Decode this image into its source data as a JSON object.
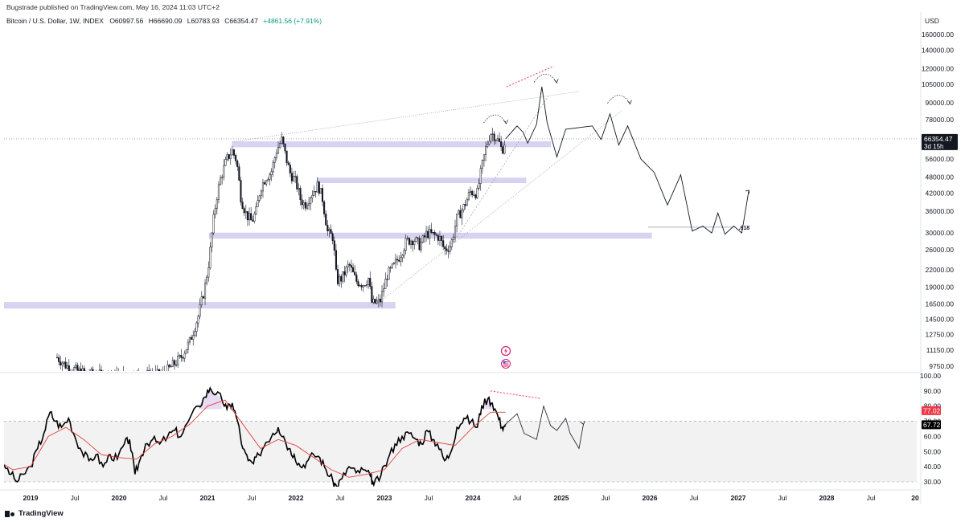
{
  "publisher": "Bugstrade published on TradingView.com, May 16, 2024 11:03 UTC+2",
  "symbol": "Bitcoin / U.S. Dollar, 1W, INDEX",
  "ohlc": {
    "open": "O60997.56",
    "high": "H66690.09",
    "low": "L60783.93",
    "close": "C66354.47",
    "change": "+4861.56 (+7.91%)"
  },
  "currency": "USD",
  "brand": "TradingView",
  "colors": {
    "candle": "#131722",
    "zone": "#d9d3f2",
    "zone_edge": "#cfc6ee",
    "rsi": "#000000",
    "rsi_ma": "#e04040",
    "rsi_band": "#f2f2f2",
    "price_badge": "#131722",
    "rsi_badge": "#f23645",
    "divergence": "#f23645"
  },
  "icons": [
    "lightning-icon",
    "us-flag-icon"
  ],
  "chart_data": [
    {
      "type": "candlestick",
      "panel": "price",
      "scale": "log",
      "ylim": [
        9000,
        170000
      ],
      "x_ticks": [
        "2019",
        "Jul",
        "2020",
        "Jul",
        "2021",
        "Jul",
        "2022",
        "Jul",
        "2023",
        "Jul",
        "2024",
        "Jul",
        "2025",
        "Jul",
        "2026",
        "Jul",
        "2027",
        "Jul",
        "2028",
        "Jul",
        "20"
      ],
      "x_tick_years": [
        2019,
        2019.5,
        2020,
        2020.5,
        2021,
        2021.5,
        2022,
        2022.5,
        2023,
        2023.5,
        2024,
        2024.5,
        2025,
        2025.5,
        2026,
        2026.5,
        2027,
        2027.5,
        2028,
        2028.5,
        2029
      ],
      "y_ticks": [
        {
          "value": 160000,
          "label": "160000.00"
        },
        {
          "value": 140000,
          "label": "140000.00"
        },
        {
          "value": 120000,
          "label": "120000.00"
        },
        {
          "value": 105000,
          "label": "105000.00"
        },
        {
          "value": 90000,
          "label": "90000.00"
        },
        {
          "value": 78000,
          "label": "78000.00"
        },
        {
          "value": 56000,
          "label": "56000.00"
        },
        {
          "value": 48000,
          "label": "48000.00"
        },
        {
          "value": 42000,
          "label": "42000.00"
        },
        {
          "value": 36000,
          "label": "36000.00"
        },
        {
          "value": 30000,
          "label": "30000.00"
        },
        {
          "value": 26000,
          "label": "26000.00"
        },
        {
          "value": 22000,
          "label": "22000.00"
        },
        {
          "value": 19000,
          "label": "19000.00"
        },
        {
          "value": 16500,
          "label": "16500.00"
        },
        {
          "value": 14500,
          "label": "14500.00"
        },
        {
          "value": 12750,
          "label": "12750.00"
        },
        {
          "value": 11150,
          "label": "11150.00"
        },
        {
          "value": 9750,
          "label": "9750.00"
        }
      ],
      "last_price": {
        "value": 66354.47,
        "label": "66354.47",
        "countdown": "3d 15h"
      },
      "close_path": [
        [
          2019.3,
          10500
        ],
        [
          2019.4,
          9800
        ],
        [
          2019.55,
          9300
        ],
        [
          2019.7,
          9100
        ],
        [
          2019.9,
          9000
        ],
        [
          2020.5,
          9100
        ],
        [
          2020.7,
          10500
        ],
        [
          2020.8,
          12000
        ],
        [
          2020.9,
          15000
        ],
        [
          2020.97,
          19000
        ],
        [
          2021.02,
          24000
        ],
        [
          2021.06,
          32000
        ],
        [
          2021.1,
          40000
        ],
        [
          2021.15,
          48000
        ],
        [
          2021.22,
          56000
        ],
        [
          2021.28,
          60000
        ],
        [
          2021.33,
          55000
        ],
        [
          2021.38,
          40000
        ],
        [
          2021.44,
          35000
        ],
        [
          2021.5,
          33000
        ],
        [
          2021.55,
          36000
        ],
        [
          2021.6,
          44000
        ],
        [
          2021.66,
          48000
        ],
        [
          2021.72,
          50000
        ],
        [
          2021.78,
          60000
        ],
        [
          2021.84,
          66000
        ],
        [
          2021.88,
          58000
        ],
        [
          2021.93,
          50000
        ],
        [
          2022.0,
          46000
        ],
        [
          2022.05,
          40000
        ],
        [
          2022.1,
          38000
        ],
        [
          2022.18,
          42000
        ],
        [
          2022.25,
          45000
        ],
        [
          2022.3,
          40000
        ],
        [
          2022.36,
          30000
        ],
        [
          2022.42,
          29000
        ],
        [
          2022.46,
          20000
        ],
        [
          2022.52,
          20500
        ],
        [
          2022.6,
          23000
        ],
        [
          2022.68,
          20000
        ],
        [
          2022.76,
          19500
        ],
        [
          2022.82,
          20500
        ],
        [
          2022.86,
          16500
        ],
        [
          2022.95,
          16800
        ],
        [
          2023.03,
          21000
        ],
        [
          2023.1,
          22500
        ],
        [
          2023.18,
          25000
        ],
        [
          2023.25,
          28000
        ],
        [
          2023.33,
          28500
        ],
        [
          2023.4,
          27000
        ],
        [
          2023.48,
          30000
        ],
        [
          2023.55,
          29500
        ],
        [
          2023.62,
          29000
        ],
        [
          2023.68,
          26000
        ],
        [
          2023.75,
          27000
        ],
        [
          2023.82,
          34000
        ],
        [
          2023.9,
          37500
        ],
        [
          2023.97,
          42500
        ],
        [
          2024.05,
          42000
        ],
        [
          2024.1,
          52000
        ],
        [
          2024.15,
          62000
        ],
        [
          2024.2,
          70000
        ],
        [
          2024.25,
          68000
        ],
        [
          2024.3,
          64000
        ],
        [
          2024.33,
          60000
        ],
        [
          2024.37,
          66354
        ]
      ],
      "zones": [
        {
          "x0": 2021.28,
          "x1": 2024.88,
          "low": 62000,
          "high": 64800
        },
        {
          "x0": 2022.24,
          "x1": 2024.6,
          "low": 45800,
          "high": 47700
        },
        {
          "x0": 2021.02,
          "x1": 2026.02,
          "low": 28700,
          "high": 30000
        },
        {
          "x0": 2018.6,
          "x1": 2023.12,
          "low": 15900,
          "high": 16700
        }
      ],
      "fib_level": {
        "label": ".618",
        "x0": 2025.98,
        "x1": 2026.95,
        "value": 31500
      },
      "trendlines": [
        {
          "kind": "resistance",
          "points": [
            [
              2021.28,
              64700
            ],
            [
              2025.2,
              99000
            ]
          ]
        },
        {
          "kind": "support",
          "points": [
            [
              2022.94,
              16700
            ],
            [
              2025.68,
              84000
            ]
          ]
        },
        {
          "kind": "channel",
          "points": [
            [
              2023.76,
              27000
            ],
            [
              2024.85,
              95000
            ]
          ]
        }
      ],
      "projection": [
        [
          2024.37,
          66354
        ],
        [
          2024.5,
          74000
        ],
        [
          2024.57,
          70000
        ],
        [
          2024.62,
          64000
        ],
        [
          2024.72,
          75000
        ],
        [
          2024.78,
          103000
        ],
        [
          2024.84,
          76000
        ],
        [
          2024.95,
          57000
        ],
        [
          2025.05,
          72000
        ],
        [
          2025.35,
          74000
        ],
        [
          2025.45,
          66000
        ],
        [
          2025.55,
          82000
        ],
        [
          2025.65,
          63000
        ],
        [
          2025.75,
          74000
        ],
        [
          2025.9,
          56000
        ],
        [
          2026.05,
          50000
        ],
        [
          2026.2,
          38000
        ],
        [
          2026.35,
          49000
        ],
        [
          2026.48,
          30500
        ],
        [
          2026.6,
          31800
        ],
        [
          2026.7,
          30000
        ],
        [
          2026.77,
          35500
        ],
        [
          2026.85,
          29700
        ],
        [
          2026.95,
          31800
        ],
        [
          2027.04,
          30000
        ],
        [
          2027.12,
          43000
        ]
      ],
      "divergence": [
        [
          2024.38,
          103000
        ],
        [
          2024.9,
          122000
        ]
      ]
    },
    {
      "type": "line",
      "panel": "rsi",
      "ylim": [
        25,
        100
      ],
      "y_ticks": [
        {
          "value": 100,
          "label": "100.00"
        },
        {
          "value": 90,
          "label": "90.00"
        },
        {
          "value": 80,
          "label": "80.00"
        },
        {
          "value": 70,
          "label": "70.00"
        },
        {
          "value": 60,
          "label": "60.00"
        },
        {
          "value": 50,
          "label": "50.00"
        },
        {
          "value": 40,
          "label": "40.00"
        },
        {
          "value": 30,
          "label": "30.00"
        }
      ],
      "band": [
        30,
        70
      ],
      "badges": [
        {
          "value": 77.02,
          "label": "77.02"
        },
        {
          "value": 67.72,
          "label": "67.72"
        }
      ],
      "series": [
        {
          "role": "rsi",
          "values": [
            [
              2018.6,
              42
            ],
            [
              2018.7,
              41
            ],
            [
              2018.78,
              35
            ],
            [
              2018.85,
              30
            ],
            [
              2018.92,
              35
            ],
            [
              2019.0,
              40
            ],
            [
              2019.08,
              52
            ],
            [
              2019.15,
              62
            ],
            [
              2019.22,
              76
            ],
            [
              2019.28,
              70
            ],
            [
              2019.35,
              66
            ],
            [
              2019.43,
              72
            ],
            [
              2019.5,
              60
            ],
            [
              2019.58,
              50
            ],
            [
              2019.66,
              44
            ],
            [
              2019.74,
              48
            ],
            [
              2019.82,
              40
            ],
            [
              2019.9,
              48
            ],
            [
              2019.98,
              45
            ],
            [
              2020.06,
              55
            ],
            [
              2020.12,
              58
            ],
            [
              2020.18,
              35
            ],
            [
              2020.24,
              45
            ],
            [
              2020.3,
              55
            ],
            [
              2020.38,
              58
            ],
            [
              2020.46,
              55
            ],
            [
              2020.55,
              60
            ],
            [
              2020.63,
              64
            ],
            [
              2020.7,
              60
            ],
            [
              2020.8,
              72
            ],
            [
              2020.9,
              80
            ],
            [
              2020.97,
              86
            ],
            [
              2021.03,
              92
            ],
            [
              2021.1,
              88
            ],
            [
              2021.16,
              85
            ],
            [
              2021.22,
              78
            ],
            [
              2021.28,
              82
            ],
            [
              2021.34,
              70
            ],
            [
              2021.4,
              52
            ],
            [
              2021.46,
              44
            ],
            [
              2021.52,
              42
            ],
            [
              2021.58,
              48
            ],
            [
              2021.66,
              56
            ],
            [
              2021.74,
              62
            ],
            [
              2021.8,
              66
            ],
            [
              2021.86,
              60
            ],
            [
              2021.92,
              52
            ],
            [
              2021.98,
              48
            ],
            [
              2022.05,
              40
            ],
            [
              2022.12,
              43
            ],
            [
              2022.2,
              48
            ],
            [
              2022.27,
              46
            ],
            [
              2022.34,
              38
            ],
            [
              2022.42,
              30
            ],
            [
              2022.46,
              27
            ],
            [
              2022.52,
              32
            ],
            [
              2022.6,
              40
            ],
            [
              2022.68,
              36
            ],
            [
              2022.76,
              38
            ],
            [
              2022.84,
              34
            ],
            [
              2022.88,
              28
            ],
            [
              2022.96,
              34
            ],
            [
              2023.04,
              45
            ],
            [
              2023.12,
              55
            ],
            [
              2023.2,
              60
            ],
            [
              2023.28,
              62
            ],
            [
              2023.36,
              58
            ],
            [
              2023.42,
              55
            ],
            [
              2023.48,
              64
            ],
            [
              2023.55,
              58
            ],
            [
              2023.6,
              55
            ],
            [
              2023.68,
              44
            ],
            [
              2023.74,
              48
            ],
            [
              2023.82,
              66
            ],
            [
              2023.9,
              72
            ],
            [
              2023.98,
              70
            ],
            [
              2024.05,
              66
            ],
            [
              2024.1,
              80
            ],
            [
              2024.17,
              85
            ],
            [
              2024.22,
              82
            ],
            [
              2024.28,
              74
            ],
            [
              2024.33,
              66
            ],
            [
              2024.37,
              68
            ]
          ]
        },
        {
          "role": "rsi_ma",
          "values": [
            [
              2018.6,
              45
            ],
            [
              2018.8,
              38
            ],
            [
              2019.0,
              40
            ],
            [
              2019.2,
              60
            ],
            [
              2019.4,
              66
            ],
            [
              2019.6,
              58
            ],
            [
              2019.8,
              48
            ],
            [
              2020.0,
              46
            ],
            [
              2020.2,
              45
            ],
            [
              2020.4,
              55
            ],
            [
              2020.6,
              60
            ],
            [
              2020.8,
              68
            ],
            [
              2021.0,
              80
            ],
            [
              2021.2,
              84
            ],
            [
              2021.4,
              68
            ],
            [
              2021.6,
              52
            ],
            [
              2021.8,
              58
            ],
            [
              2022.0,
              54
            ],
            [
              2022.2,
              46
            ],
            [
              2022.4,
              38
            ],
            [
              2022.6,
              33
            ],
            [
              2022.8,
              35
            ],
            [
              2023.0,
              38
            ],
            [
              2023.2,
              52
            ],
            [
              2023.4,
              58
            ],
            [
              2023.6,
              56
            ],
            [
              2023.8,
              54
            ],
            [
              2024.0,
              66
            ],
            [
              2024.2,
              76
            ],
            [
              2024.37,
              76
            ]
          ]
        },
        {
          "role": "projection",
          "values": [
            [
              2024.37,
              68
            ],
            [
              2024.5,
              75
            ],
            [
              2024.58,
              62
            ],
            [
              2024.72,
              58
            ],
            [
              2024.8,
              80
            ],
            [
              2024.88,
              67
            ],
            [
              2024.95,
              64
            ],
            [
              2025.05,
              72
            ],
            [
              2025.1,
              62
            ],
            [
              2025.2,
              52
            ],
            [
              2025.25,
              68
            ]
          ]
        }
      ],
      "divergence": [
        [
          2024.2,
          90
        ],
        [
          2024.77,
          85
        ]
      ]
    }
  ]
}
